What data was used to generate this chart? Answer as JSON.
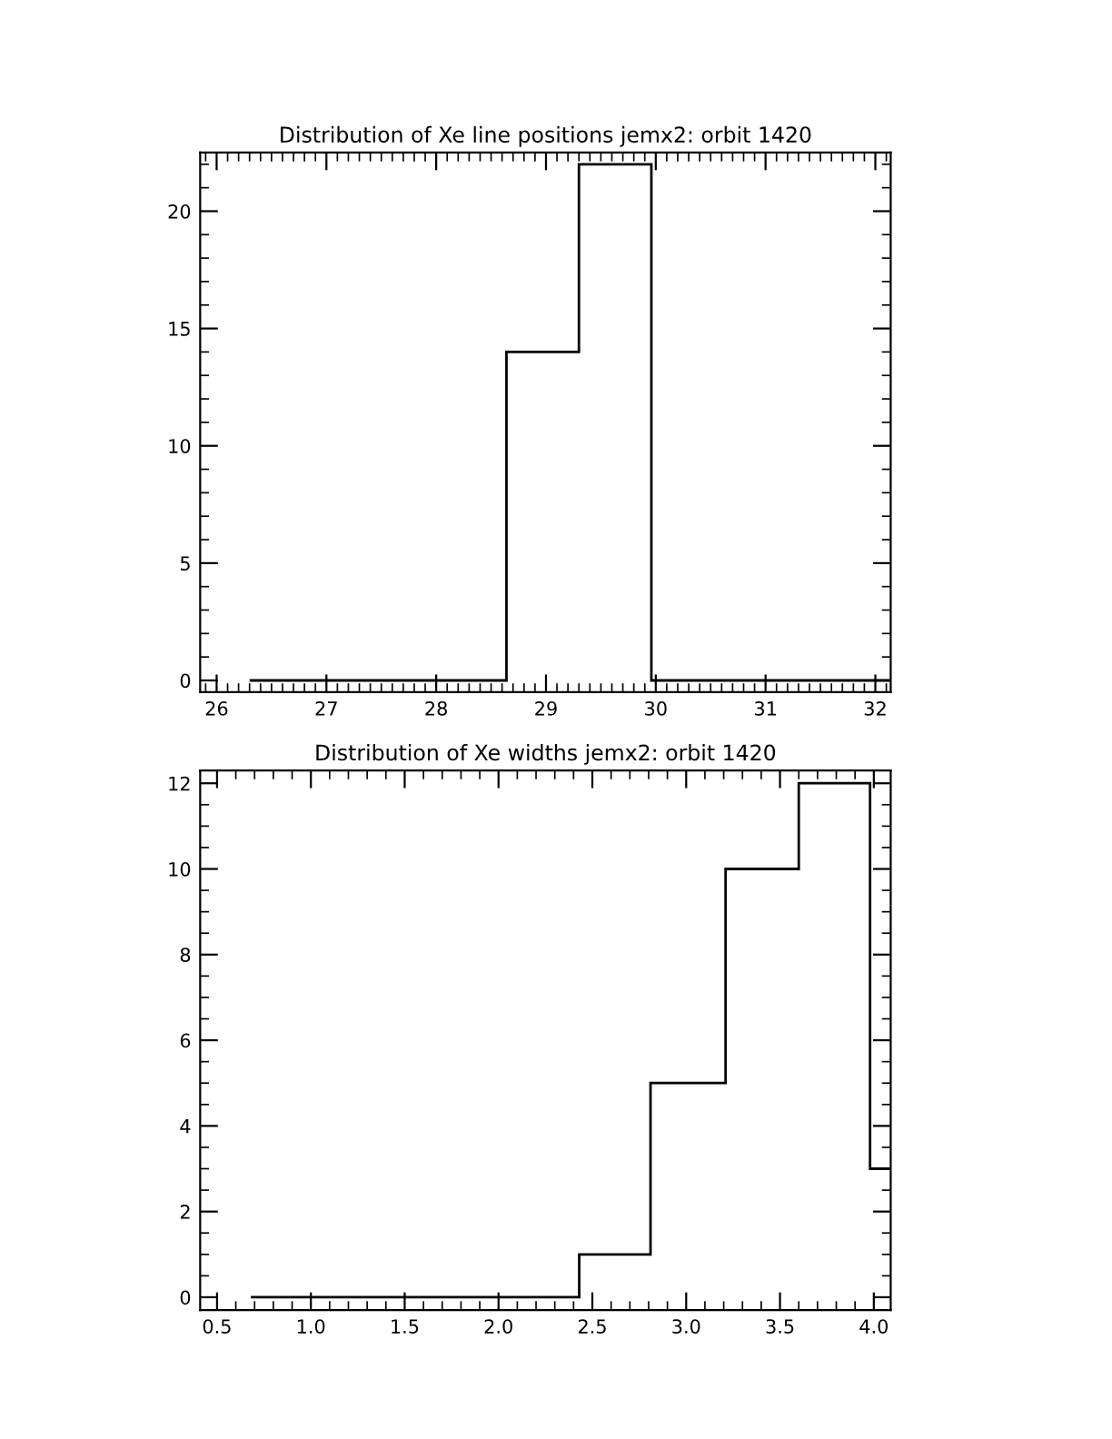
{
  "chart_data": [
    {
      "type": "histogram",
      "title": "Distribution of Xe line positions jemx2: orbit 1420",
      "bins": [
        26.3,
        28.64,
        29.3,
        29.96,
        32.14
      ],
      "values": [
        0,
        14,
        22,
        0
      ],
      "color": "#000000",
      "xlim": [
        25.85,
        32.14
      ],
      "xticks": [
        26,
        27,
        28,
        29,
        30,
        31,
        32
      ],
      "ylim": [
        -0.5,
        22.5
      ],
      "yticks": [
        0,
        5,
        10,
        15,
        20
      ],
      "grid": false
    },
    {
      "type": "histogram",
      "title": "Distribution of Xe widths jemx2: orbit 1420",
      "bins": [
        0.68,
        2.43,
        2.81,
        3.21,
        3.6,
        3.98,
        4.09
      ],
      "values": [
        0,
        1,
        5,
        10,
        12,
        3
      ],
      "color": "#000000",
      "xlim": [
        0.41,
        4.09
      ],
      "xticks": [
        {
          "value": 0.5,
          "label": "0.5"
        },
        {
          "value": 1.0,
          "label": "1.0"
        },
        {
          "value": 1.5,
          "label": "1.5"
        },
        {
          "value": 2.0,
          "label": "2.0"
        },
        {
          "value": 2.5,
          "label": "2.5"
        },
        {
          "value": 3.0,
          "label": "3.0"
        },
        {
          "value": 3.5,
          "label": "3.5"
        },
        {
          "value": 4.0,
          "label": "4.0"
        }
      ],
      "ylim": [
        -0.3,
        12.3
      ],
      "yticks": [
        0,
        2,
        4,
        6,
        8,
        10,
        12
      ],
      "grid": false
    }
  ]
}
